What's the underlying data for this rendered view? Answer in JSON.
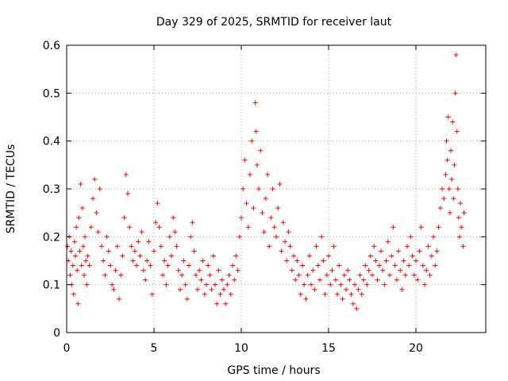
{
  "chart_data": {
    "type": "scatter",
    "title": "Day 329 of 2025, SRMTID for receiver laut",
    "xlabel": "GPS time / hours",
    "ylabel": "SRMTID / TECUs",
    "xlim": [
      0,
      24
    ],
    "ylim": [
      0,
      0.6
    ],
    "xticks": [
      0,
      5,
      10,
      15,
      20
    ],
    "xtick_labels": [
      "0",
      "5",
      "10",
      "15",
      "20"
    ],
    "yticks": [
      0,
      0.1,
      0.2,
      0.3,
      0.4,
      0.5,
      0.6
    ],
    "ytick_labels": [
      "0",
      "0.1",
      "0.2",
      "0.3",
      "0.4",
      "0.5",
      "0.6"
    ],
    "grid": true,
    "marker": "+",
    "color": "#ff0000",
    "series": [
      {
        "name": "SRMTID",
        "points": [
          [
            0.05,
            0.18
          ],
          [
            0.1,
            0.15
          ],
          [
            0.15,
            0.2
          ],
          [
            0.2,
            0.12
          ],
          [
            0.25,
            0.17
          ],
          [
            0.3,
            0.1
          ],
          [
            0.35,
            0.14
          ],
          [
            0.4,
            0.08
          ],
          [
            0.45,
            0.19
          ],
          [
            0.5,
            0.16
          ],
          [
            0.55,
            0.22
          ],
          [
            0.6,
            0.13
          ],
          [
            0.65,
            0.06
          ],
          [
            0.7,
            0.24
          ],
          [
            0.75,
            0.17
          ],
          [
            0.8,
            0.31
          ],
          [
            0.85,
            0.14
          ],
          [
            0.9,
            0.26
          ],
          [
            0.95,
            0.18
          ],
          [
            1.0,
            0.12
          ],
          [
            1.05,
            0.2
          ],
          [
            1.1,
            0.15
          ],
          [
            1.15,
            0.1
          ],
          [
            1.2,
            0.16
          ],
          [
            1.3,
            0.14
          ],
          [
            1.4,
            0.22
          ],
          [
            1.5,
            0.28
          ],
          [
            1.6,
            0.32
          ],
          [
            1.7,
            0.25
          ],
          [
            1.8,
            0.21
          ],
          [
            1.9,
            0.3
          ],
          [
            2.0,
            0.18
          ],
          [
            2.1,
            0.15
          ],
          [
            2.2,
            0.12
          ],
          [
            2.3,
            0.2
          ],
          [
            2.4,
            0.17
          ],
          [
            2.5,
            0.14
          ],
          [
            2.6,
            0.1
          ],
          [
            2.7,
            0.09
          ],
          [
            2.8,
            0.13
          ],
          [
            2.9,
            0.18
          ],
          [
            3.0,
            0.07
          ],
          [
            3.1,
            0.12
          ],
          [
            3.2,
            0.16
          ],
          [
            3.3,
            0.24
          ],
          [
            3.4,
            0.33
          ],
          [
            3.5,
            0.29
          ],
          [
            3.6,
            0.22
          ],
          [
            3.7,
            0.18
          ],
          [
            3.8,
            0.15
          ],
          [
            3.9,
            0.17
          ],
          [
            4.0,
            0.14
          ],
          [
            4.1,
            0.19
          ],
          [
            4.2,
            0.16
          ],
          [
            4.3,
            0.21
          ],
          [
            4.4,
            0.13
          ],
          [
            4.5,
            0.11
          ],
          [
            4.6,
            0.15
          ],
          [
            4.7,
            0.19
          ],
          [
            4.8,
            0.14
          ],
          [
            4.9,
            0.08
          ],
          [
            5.0,
            0.17
          ],
          [
            5.1,
            0.23
          ],
          [
            5.2,
            0.27
          ],
          [
            5.3,
            0.22
          ],
          [
            5.4,
            0.18
          ],
          [
            5.5,
            0.12
          ],
          [
            5.6,
            0.15
          ],
          [
            5.7,
            0.1
          ],
          [
            5.8,
            0.14
          ],
          [
            5.9,
            0.2
          ],
          [
            6.0,
            0.16
          ],
          [
            6.1,
            0.24
          ],
          [
            6.2,
            0.21
          ],
          [
            6.3,
            0.18
          ],
          [
            6.4,
            0.13
          ],
          [
            6.5,
            0.09
          ],
          [
            6.6,
            0.12
          ],
          [
            6.7,
            0.15
          ],
          [
            6.8,
            0.1
          ],
          [
            6.9,
            0.07
          ],
          [
            7.0,
            0.14
          ],
          [
            7.1,
            0.2
          ],
          [
            7.2,
            0.23
          ],
          [
            7.3,
            0.17
          ],
          [
            7.4,
            0.12
          ],
          [
            7.5,
            0.09
          ],
          [
            7.6,
            0.13
          ],
          [
            7.7,
            0.11
          ],
          [
            7.8,
            0.15
          ],
          [
            7.9,
            0.08
          ],
          [
            8.0,
            0.1
          ],
          [
            8.1,
            0.14
          ],
          [
            8.2,
            0.12
          ],
          [
            8.3,
            0.09
          ],
          [
            8.4,
            0.16
          ],
          [
            8.5,
            0.1
          ],
          [
            8.6,
            0.06
          ],
          [
            8.7,
            0.13
          ],
          [
            8.8,
            0.08
          ],
          [
            8.9,
            0.11
          ],
          [
            9.0,
            0.09
          ],
          [
            9.1,
            0.06
          ],
          [
            9.2,
            0.1
          ],
          [
            9.3,
            0.12
          ],
          [
            9.4,
            0.08
          ],
          [
            9.5,
            0.14
          ],
          [
            9.6,
            0.11
          ],
          [
            9.7,
            0.16
          ],
          [
            9.8,
            0.13
          ],
          [
            9.9,
            0.2
          ],
          [
            10.0,
            0.24
          ],
          [
            10.1,
            0.3
          ],
          [
            10.2,
            0.36
          ],
          [
            10.3,
            0.27
          ],
          [
            10.4,
            0.22
          ],
          [
            10.5,
            0.33
          ],
          [
            10.6,
            0.4
          ],
          [
            10.7,
            0.26
          ],
          [
            10.8,
            0.48
          ],
          [
            10.85,
            0.42
          ],
          [
            10.9,
            0.35
          ],
          [
            11.0,
            0.3
          ],
          [
            11.1,
            0.38
          ],
          [
            11.2,
            0.25
          ],
          [
            11.3,
            0.21
          ],
          [
            11.4,
            0.28
          ],
          [
            11.5,
            0.33
          ],
          [
            11.6,
            0.18
          ],
          [
            11.7,
            0.24
          ],
          [
            11.8,
            0.3
          ],
          [
            11.9,
            0.22
          ],
          [
            12.0,
            0.2
          ],
          [
            12.1,
            0.26
          ],
          [
            12.2,
            0.31
          ],
          [
            12.3,
            0.17
          ],
          [
            12.4,
            0.23
          ],
          [
            12.5,
            0.19
          ],
          [
            12.6,
            0.15
          ],
          [
            12.7,
            0.21
          ],
          [
            12.8,
            0.18
          ],
          [
            12.9,
            0.13
          ],
          [
            13.0,
            0.16
          ],
          [
            13.1,
            0.11
          ],
          [
            13.2,
            0.15
          ],
          [
            13.3,
            0.12
          ],
          [
            13.4,
            0.08
          ],
          [
            13.5,
            0.14
          ],
          [
            13.6,
            0.1
          ],
          [
            13.7,
            0.07
          ],
          [
            13.8,
            0.12
          ],
          [
            13.9,
            0.16
          ],
          [
            14.0,
            0.1
          ],
          [
            14.1,
            0.13
          ],
          [
            14.2,
            0.09
          ],
          [
            14.3,
            0.18
          ],
          [
            14.4,
            0.14
          ],
          [
            14.5,
            0.11
          ],
          [
            14.6,
            0.2
          ],
          [
            14.7,
            0.15
          ],
          [
            14.8,
            0.08
          ],
          [
            14.9,
            0.12
          ],
          [
            15.0,
            0.16
          ],
          [
            15.1,
            0.1
          ],
          [
            15.2,
            0.13
          ],
          [
            15.3,
            0.18
          ],
          [
            15.4,
            0.11
          ],
          [
            15.5,
            0.08
          ],
          [
            15.6,
            0.14
          ],
          [
            15.7,
            0.1
          ],
          [
            15.8,
            0.07
          ],
          [
            15.9,
            0.12
          ],
          [
            16.0,
            0.09
          ],
          [
            16.1,
            0.13
          ],
          [
            16.2,
            0.11
          ],
          [
            16.3,
            0.08
          ],
          [
            16.4,
            0.06
          ],
          [
            16.5,
            0.1
          ],
          [
            16.6,
            0.05
          ],
          [
            16.7,
            0.09
          ],
          [
            16.8,
            0.12
          ],
          [
            16.9,
            0.08
          ],
          [
            17.0,
            0.11
          ],
          [
            17.1,
            0.14
          ],
          [
            17.2,
            0.1
          ],
          [
            17.3,
            0.13
          ],
          [
            17.4,
            0.16
          ],
          [
            17.5,
            0.12
          ],
          [
            17.6,
            0.18
          ],
          [
            17.7,
            0.15
          ],
          [
            17.8,
            0.11
          ],
          [
            17.9,
            0.14
          ],
          [
            18.0,
            0.17
          ],
          [
            18.1,
            0.13
          ],
          [
            18.2,
            0.1
          ],
          [
            18.3,
            0.15
          ],
          [
            18.4,
            0.19
          ],
          [
            18.5,
            0.12
          ],
          [
            18.6,
            0.16
          ],
          [
            18.7,
            0.22
          ],
          [
            18.8,
            0.14
          ],
          [
            18.9,
            0.11
          ],
          [
            19.0,
            0.17
          ],
          [
            19.1,
            0.13
          ],
          [
            19.2,
            0.09
          ],
          [
            19.3,
            0.15
          ],
          [
            19.4,
            0.12
          ],
          [
            19.5,
            0.18
          ],
          [
            19.6,
            0.14
          ],
          [
            19.7,
            0.2
          ],
          [
            19.8,
            0.16
          ],
          [
            19.9,
            0.12
          ],
          [
            20.0,
            0.15
          ],
          [
            20.1,
            0.11
          ],
          [
            20.2,
            0.17
          ],
          [
            20.3,
            0.22
          ],
          [
            20.4,
            0.14
          ],
          [
            20.5,
            0.1
          ],
          [
            20.6,
            0.13
          ],
          [
            20.7,
            0.18
          ],
          [
            20.8,
            0.12
          ],
          [
            20.9,
            0.16
          ],
          [
            21.0,
            0.2
          ],
          [
            21.1,
            0.14
          ],
          [
            21.2,
            0.17
          ],
          [
            21.3,
            0.22
          ],
          [
            21.4,
            0.26
          ],
          [
            21.5,
            0.3
          ],
          [
            21.6,
            0.28
          ],
          [
            21.7,
            0.33
          ],
          [
            21.75,
            0.4
          ],
          [
            21.8,
            0.36
          ],
          [
            21.85,
            0.45
          ],
          [
            21.9,
            0.3
          ],
          [
            21.95,
            0.25
          ],
          [
            22.0,
            0.38
          ],
          [
            22.05,
            0.32
          ],
          [
            22.1,
            0.44
          ],
          [
            22.15,
            0.28
          ],
          [
            22.2,
            0.35
          ],
          [
            22.25,
            0.5
          ],
          [
            22.3,
            0.58
          ],
          [
            22.35,
            0.42
          ],
          [
            22.4,
            0.3
          ],
          [
            22.45,
            0.24
          ],
          [
            22.5,
            0.2
          ],
          [
            22.55,
            0.27
          ],
          [
            22.6,
            0.22
          ],
          [
            22.7,
            0.18
          ],
          [
            22.75,
            0.25
          ]
        ]
      }
    ]
  }
}
